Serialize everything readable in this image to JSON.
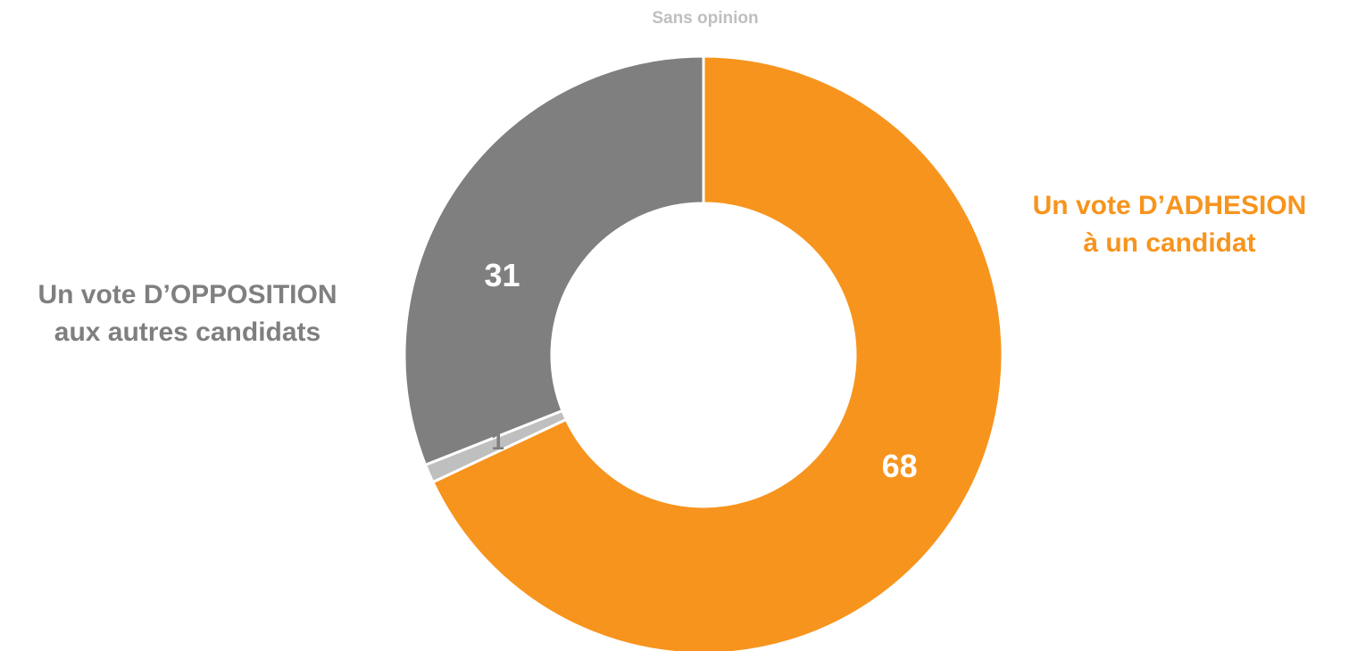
{
  "chart_data": {
    "type": "pie",
    "donut": true,
    "categories": [
      "Un vote D’ADHESION\nà un candidat",
      "Sans opinion",
      "Un vote D’OPPOSITION\naux autres candidats"
    ],
    "values": [
      68,
      1,
      31
    ],
    "value_labels": [
      "68",
      "1",
      "31"
    ],
    "colors": [
      "#F7941D",
      "#BFBFBF",
      "#7F7F7F"
    ],
    "value_label_colors": [
      "#FFFFFF",
      "#7F7F7F",
      "#FFFFFF"
    ],
    "category_label_colors": [
      "#F7941D",
      "#BFBFBF",
      "#7F7F7F"
    ],
    "start": "top",
    "direction": "clockwise",
    "legend": "none"
  }
}
